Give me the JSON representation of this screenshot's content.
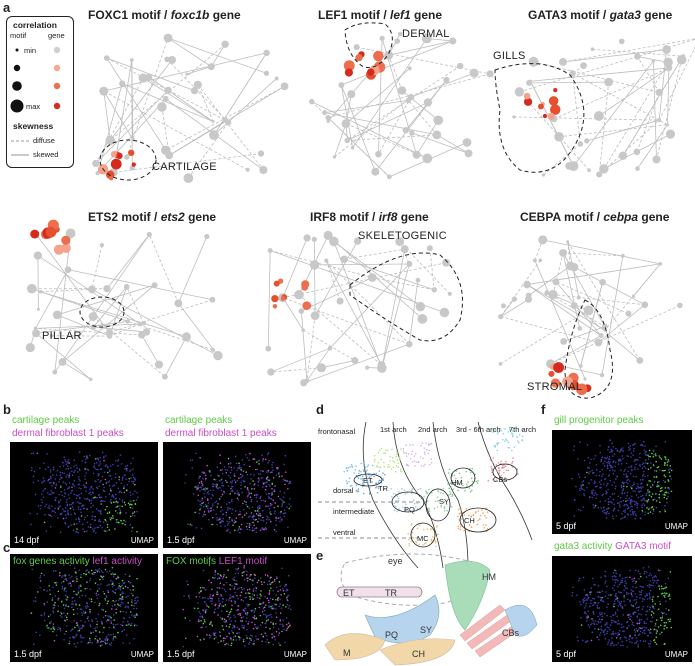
{
  "panels": {
    "a": "a",
    "b": "b",
    "c": "c",
    "d": "d",
    "e": "e",
    "f": "f"
  },
  "legend": {
    "correlation": "correlation",
    "motif": "motif",
    "gene": "gene",
    "min": "min",
    "max": "max",
    "skewness": "skewness",
    "diffuse": "diffuse",
    "skewed": "skewed",
    "colors": {
      "gene_min": "#cccccc",
      "gene_mid": "#f3a38b",
      "gene_high": "#ec6e4f",
      "gene_max": "#d42b1e"
    }
  },
  "motifs": [
    {
      "motif": "FOXC1 motif /",
      "gene": "foxc1b",
      "suffix": "gene",
      "region": "CARTILAGE"
    },
    {
      "motif": "LEF1 motif /",
      "gene": "lef1",
      "suffix": "gene",
      "region": "DERMAL"
    },
    {
      "motif": "GATA3 motif /",
      "gene": "gata3",
      "suffix": "gene",
      "region": "GILLS"
    },
    {
      "motif": "ETS2 motif /",
      "gene": "ets2",
      "suffix": "gene",
      "region": "PILLAR"
    },
    {
      "motif": "IRF8 motif /",
      "gene": "irf8",
      "suffix": "gene",
      "region": "SKELETOGENIC"
    },
    {
      "motif": "CEBPA motif /",
      "gene": "cebpa",
      "suffix": "gene",
      "region": "STROMAL"
    }
  ],
  "panel_b": {
    "left": {
      "green": "cartilage peaks",
      "magenta": "dermal fibroblast 1 peaks",
      "stage": "14 dpf",
      "umap": "UMAP"
    },
    "right": {
      "green": "cartilage peaks",
      "magenta": "dermal fibroblast 1 peaks",
      "stage": "1.5 dpf",
      "umap": "UMAP"
    }
  },
  "panel_c": {
    "left": {
      "green": "fox genes activity",
      "magenta": "lef1 activity",
      "stage": "1.5 dpf",
      "umap": "UMAP"
    },
    "right": {
      "green": "FOX motifs",
      "magenta": "LEF1 motif",
      "stage": "1.5 dpf",
      "umap": "UMAP"
    }
  },
  "panel_d": {
    "arches": [
      "frontonasal",
      "1st arch",
      "2nd arch",
      "3rd - 6th arch",
      "7th arch"
    ],
    "axes": [
      "dorsal",
      "intermediate",
      "ventral"
    ],
    "clusters": [
      "ET",
      "TR",
      "PQ",
      "MC",
      "SY",
      "HM",
      "CH",
      "CBs"
    ]
  },
  "panel_e": {
    "labels": [
      "eye",
      "ET",
      "TR",
      "HM",
      "M",
      "PQ",
      "SY",
      "CBs",
      "CH"
    ]
  },
  "panel_f": {
    "top": {
      "green": "gill progenitor peaks",
      "stage": "5 dpf",
      "umap": "UMAP"
    },
    "bottom": {
      "green": "gata3 activity",
      "magenta": "GATA3 motif",
      "stage": "5 dpf",
      "umap": "UMAP"
    }
  }
}
